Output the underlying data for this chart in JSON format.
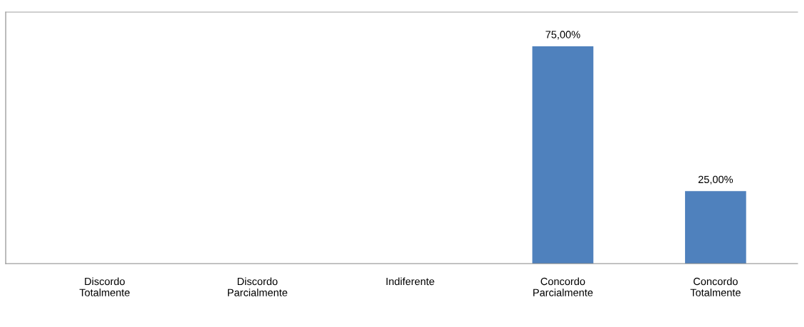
{
  "chart_data": {
    "type": "bar",
    "categories": [
      "Discordo\nTotalmente",
      "Discordo\nParcialmente",
      "Indiferente",
      "Concordo\nParcialmente",
      "Concordo\nTotalmente"
    ],
    "values": [
      0,
      0,
      0,
      75,
      25
    ],
    "value_labels": [
      null,
      null,
      null,
      "75,00%",
      "25,00%"
    ],
    "color": "#4f81bd",
    "grid": false,
    "legend": false
  }
}
